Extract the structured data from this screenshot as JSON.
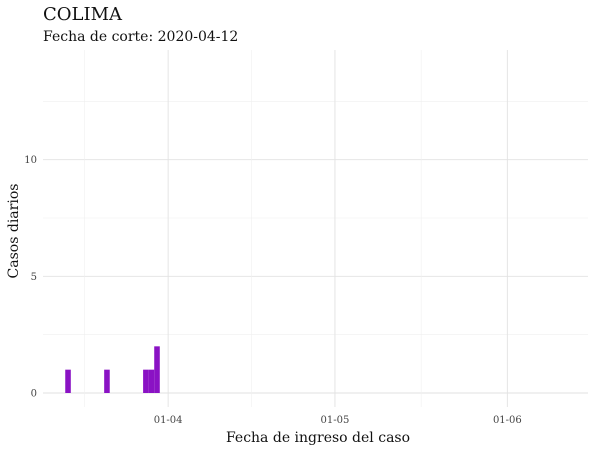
{
  "chart_data": {
    "type": "bar",
    "title": "COLIMA",
    "subtitle": "Fecha de corte: 2020-04-12",
    "xlabel": "Fecha de ingreso del caso",
    "ylabel": "Casos diarios",
    "yticks": [
      0,
      5,
      10
    ],
    "ylim": [
      -0.6,
      14.7
    ],
    "xticks": [
      {
        "label": "01-04",
        "day": 0
      },
      {
        "label": "01-05",
        "day": 30
      },
      {
        "label": "01-06",
        "day": 61
      }
    ],
    "xlim_days": [
      -22.5,
      75.5
    ],
    "bar_color": "#8a12c4",
    "bars": [
      {
        "date": "2020-03-14",
        "day": -18,
        "value": 1
      },
      {
        "date": "2020-03-21",
        "day": -11,
        "value": 1
      },
      {
        "date": "2020-03-28",
        "day": -4,
        "value": 1
      },
      {
        "date": "2020-03-29",
        "day": -3,
        "value": 1
      },
      {
        "date": "2020-03-30",
        "day": -2,
        "value": 2
      }
    ]
  }
}
